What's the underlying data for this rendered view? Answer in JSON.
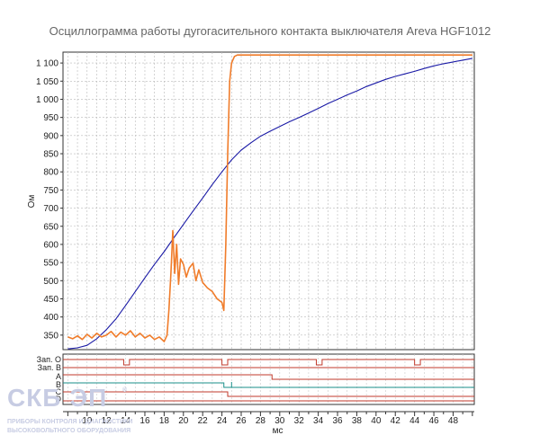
{
  "chart_data": {
    "type": "line",
    "title": "Осциллограмма работы дугогасительного контакта выключателя Areva HGF1012",
    "xlabel": "мс",
    "ylabel": "Ом",
    "xlim": [
      7.5,
      50.2
    ],
    "ylim": [
      310,
      1130
    ],
    "x_ticks": [
      10,
      12,
      14,
      16,
      18,
      20,
      22,
      24,
      26,
      28,
      30,
      32,
      34,
      36,
      38,
      40,
      42,
      44,
      46,
      48
    ],
    "y_ticks": [
      350,
      400,
      450,
      500,
      550,
      600,
      650,
      700,
      750,
      800,
      850,
      900,
      950,
      1000,
      1050,
      1100
    ],
    "y_tick_labels": [
      "350",
      "400",
      "450",
      "500",
      "550",
      "600",
      "650",
      "700",
      "750",
      "800",
      "850",
      "900",
      "950",
      "1 000",
      "1 050",
      "1 100"
    ],
    "grid": true,
    "series": [
      {
        "color": "#1a1aa6",
        "x": [
          8,
          9,
          10,
          11,
          12,
          13,
          14,
          15,
          16,
          17,
          18,
          19,
          20,
          21,
          22,
          23,
          24,
          25,
          26,
          27,
          28,
          29,
          30,
          31,
          32,
          33,
          34,
          35,
          36,
          37,
          38,
          39,
          40,
          41,
          42,
          43,
          44,
          45,
          46,
          47,
          48,
          49,
          50
        ],
        "y": [
          312,
          315,
          322,
          340,
          365,
          395,
          432,
          470,
          508,
          545,
          580,
          618,
          655,
          692,
          728,
          765,
          800,
          833,
          860,
          880,
          898,
          912,
          925,
          938,
          950,
          962,
          975,
          988,
          1000,
          1012,
          1023,
          1035,
          1045,
          1055,
          1063,
          1070,
          1077,
          1085,
          1092,
          1098,
          1103,
          1108,
          1113
        ]
      },
      {
        "color": "#f07c2a",
        "x": [
          8,
          8.5,
          9,
          9.5,
          10,
          10.5,
          11,
          11.5,
          12,
          12.5,
          13,
          13.5,
          14,
          14.5,
          15,
          15.5,
          16,
          16.5,
          17,
          17.5,
          18,
          18.3,
          18.5,
          18.7,
          18.9,
          19.1,
          19.3,
          19.5,
          19.7,
          20,
          20.3,
          20.6,
          21,
          21.3,
          21.6,
          22,
          22.5,
          23,
          23.5,
          24,
          24.2,
          24.4,
          24.6,
          24.8,
          25,
          25.3,
          25.6,
          26,
          30,
          35,
          40,
          45,
          50
        ],
        "y": [
          345,
          340,
          348,
          338,
          352,
          342,
          355,
          345,
          350,
          360,
          345,
          358,
          350,
          362,
          345,
          355,
          342,
          350,
          338,
          345,
          332,
          350,
          420,
          520,
          638,
          520,
          600,
          490,
          560,
          545,
          510,
          535,
          548,
          500,
          530,
          495,
          480,
          470,
          450,
          440,
          418,
          600,
          850,
          1050,
          1100,
          1118,
          1122,
          1122,
          1122,
          1122,
          1122,
          1122,
          1122
        ]
      }
    ],
    "signal_channels": [
      {
        "label": "Зап. О"
      },
      {
        "label": "Зап. В"
      },
      {
        "label": "A"
      },
      {
        "label": "B"
      },
      {
        "label": "C"
      },
      {
        "label": "D"
      }
    ],
    "logo": {
      "text": "СКБ ЭП",
      "registered": "®",
      "tagline_1": "ПРИБОРЫ КОНТРОЛЯ И ДИАГНОСТИКИ",
      "tagline_2": "ВЫСОКОВОЛЬТНОГО ОБОРУДОВАНИЯ"
    }
  }
}
